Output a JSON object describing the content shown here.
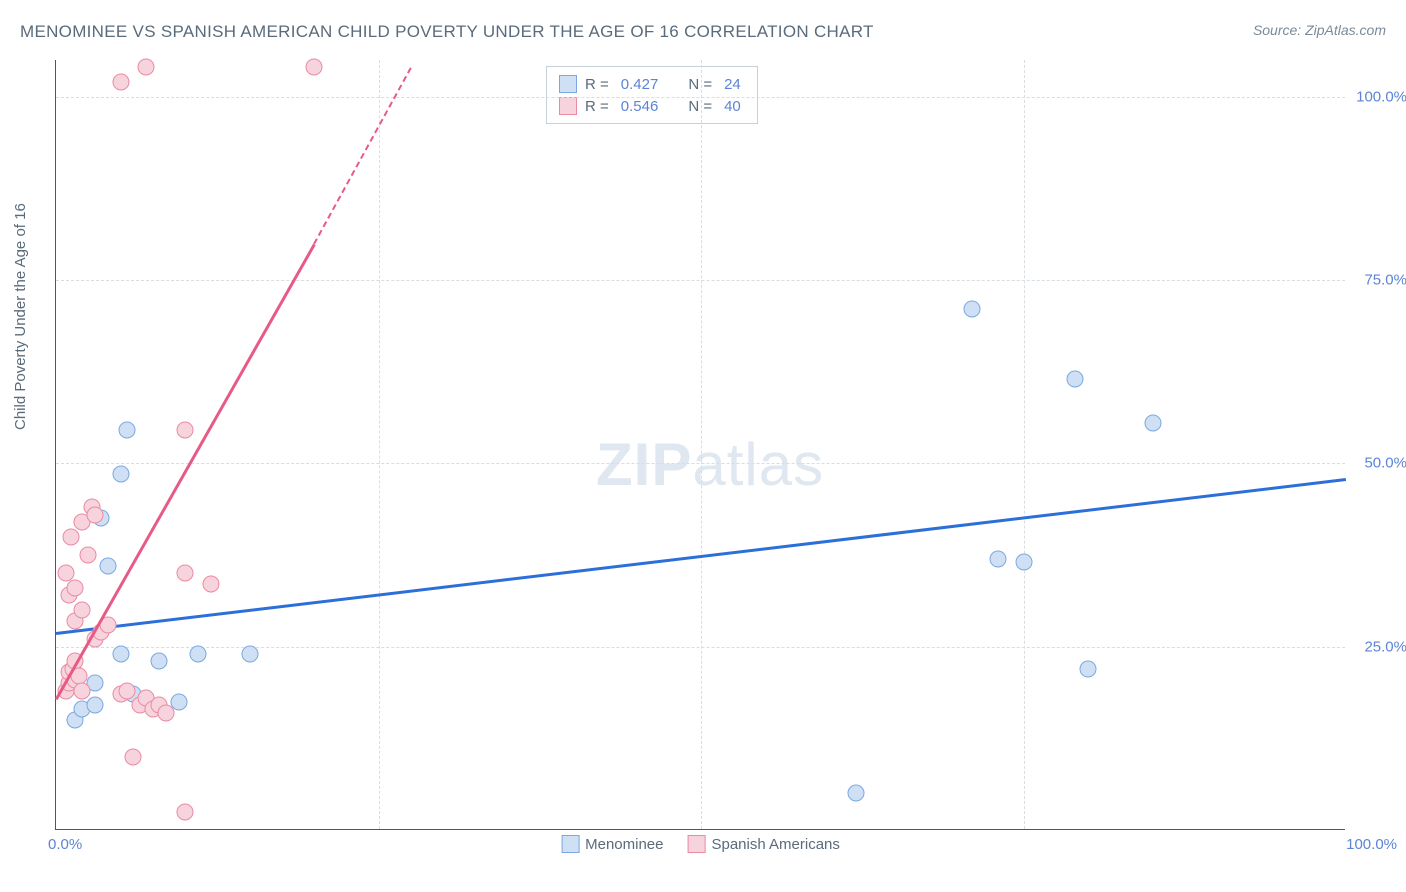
{
  "title": "MENOMINEE VS SPANISH AMERICAN CHILD POVERTY UNDER THE AGE OF 16 CORRELATION CHART",
  "source": "Source: ZipAtlas.com",
  "ylabel": "Child Poverty Under the Age of 16",
  "watermark_bold": "ZIP",
  "watermark_light": "atlas",
  "chart": {
    "type": "scatter",
    "xlim": [
      0,
      100
    ],
    "ylim": [
      0,
      105
    ],
    "xticks": [
      0,
      25,
      50,
      75,
      100
    ],
    "yticks": [
      25,
      50,
      75,
      100
    ],
    "xtick_labels": [
      "0.0%",
      "",
      "",
      "",
      "100.0%"
    ],
    "ytick_labels": [
      "25.0%",
      "50.0%",
      "75.0%",
      "100.0%"
    ],
    "grid_color": "#d8dde2",
    "axis_color": "#555555",
    "background_color": "#ffffff",
    "tick_label_color": "#5b84d6"
  },
  "series": [
    {
      "name": "Menominee",
      "marker_fill": "#cfe0f4",
      "marker_stroke": "#7aa8e0",
      "line_color": "#2b6fd8",
      "R": "0.427",
      "N": "24",
      "trend": {
        "x1": 0,
        "y1": 27,
        "x2": 100,
        "y2": 48
      },
      "points": [
        [
          1.5,
          15
        ],
        [
          2,
          16.5
        ],
        [
          3,
          17
        ],
        [
          3,
          20
        ],
        [
          5,
          24
        ],
        [
          6,
          18.5
        ],
        [
          8,
          23
        ],
        [
          9.5,
          17.5
        ],
        [
          11,
          24
        ],
        [
          4,
          36
        ],
        [
          3.5,
          42.5
        ],
        [
          5,
          48.5
        ],
        [
          5.5,
          54.5
        ],
        [
          15,
          24
        ],
        [
          62,
          5
        ],
        [
          73,
          37
        ],
        [
          75,
          36.5
        ],
        [
          71,
          71
        ],
        [
          79,
          61.5
        ],
        [
          80,
          22
        ],
        [
          85,
          55.5
        ]
      ]
    },
    {
      "name": "Spanish Americans",
      "marker_fill": "#f7d4dd",
      "marker_stroke": "#ea8aa3",
      "line_color": "#e85a86",
      "R": "0.546",
      "N": "40",
      "trend": {
        "x1": 0,
        "y1": 18,
        "x2": 20,
        "y2": 80
      },
      "trend_dash": {
        "x1": 20,
        "y1": 80,
        "x2": 27.5,
        "y2": 104
      },
      "points": [
        [
          0.8,
          19
        ],
        [
          1,
          20
        ],
        [
          1,
          21.5
        ],
        [
          1.3,
          22
        ],
        [
          1.5,
          20.5
        ],
        [
          1.5,
          23
        ],
        [
          1.8,
          21
        ],
        [
          1.5,
          28.5
        ],
        [
          2,
          30
        ],
        [
          1,
          32
        ],
        [
          1.5,
          33
        ],
        [
          0.8,
          35
        ],
        [
          2.5,
          37.5
        ],
        [
          1.2,
          40
        ],
        [
          2,
          42
        ],
        [
          2.8,
          44
        ],
        [
          3,
          43
        ],
        [
          2,
          19
        ],
        [
          3,
          26
        ],
        [
          3.5,
          27
        ],
        [
          4,
          28
        ],
        [
          5,
          18.5
        ],
        [
          5.5,
          19
        ],
        [
          6,
          10
        ],
        [
          6.5,
          17
        ],
        [
          7,
          18
        ],
        [
          7.5,
          16.5
        ],
        [
          8,
          17
        ],
        [
          8.5,
          16
        ],
        [
          10,
          54.5
        ],
        [
          10,
          35
        ],
        [
          12,
          33.5
        ],
        [
          5,
          102
        ],
        [
          7,
          104
        ],
        [
          20,
          104
        ],
        [
          10,
          2.5
        ]
      ]
    }
  ],
  "legend_top": {
    "rows": [
      {
        "swatch_fill": "#cfe0f4",
        "swatch_stroke": "#7aa8e0",
        "R": "0.427",
        "N": "24"
      },
      {
        "swatch_fill": "#f7d4dd",
        "swatch_stroke": "#ea8aa3",
        "R": "0.546",
        "N": "40"
      }
    ],
    "R_label": "R =",
    "N_label": "N ="
  },
  "legend_bottom": [
    {
      "label": "Menominee",
      "fill": "#cfe0f4",
      "stroke": "#7aa8e0"
    },
    {
      "label": "Spanish Americans",
      "fill": "#f7d4dd",
      "stroke": "#ea8aa3"
    }
  ]
}
